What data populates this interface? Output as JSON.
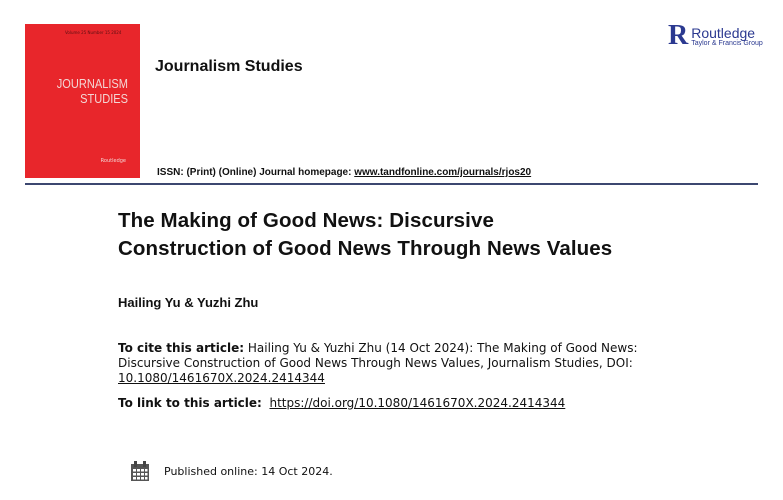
{
  "cover": {
    "issue_text": "Volume 25 Number 15 2024",
    "title_line1": "JOURNALISM",
    "title_line2": "STUDIES",
    "publisher_mark": "Routledge",
    "cover_color": "#e8262b"
  },
  "journal_name": "Journalism Studies",
  "logo": {
    "mark": "R",
    "name": "Routledge",
    "sub": "Taylor & Francis Group",
    "color": "#2b3990"
  },
  "issn": {
    "label": "ISSN: (Print) (Online) Journal homepage: ",
    "url": "www.tandfonline.com/journals/rjos20"
  },
  "article": {
    "title_line1": "The Making of Good News: Discursive",
    "title_line2": "Construction of Good News Through News Values",
    "authors": "Hailing Yu & Yuzhi Zhu"
  },
  "cite": {
    "label": "To cite this article:",
    "text": " Hailing Yu & Yuzhi Zhu (14 Oct 2024): The Making of Good News: Discursive Construction of Good News Through News Values, Journalism Studies, DOI: ",
    "doi": "10.1080/1461670X.2024.2414344"
  },
  "link": {
    "label": "To link to this article:",
    "url": "https://doi.org/10.1080/1461670X.2024.2414344"
  },
  "published": {
    "icon": "calendar-icon",
    "text": "Published online: 14 Oct 2024."
  }
}
